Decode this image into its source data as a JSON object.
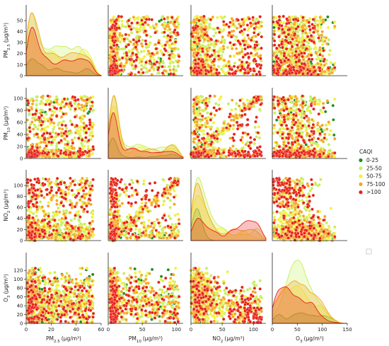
{
  "chart_data": {
    "type": "scatter",
    "kind": "pairplot",
    "variables": [
      {
        "key": "pm25",
        "label": "PM2.5 (μg/m³)",
        "base": "PM",
        "sub": "2.5",
        "unit": "(μg/m³)",
        "range": [
          0,
          60
        ],
        "ticks": [
          0,
          20,
          40,
          60
        ]
      },
      {
        "key": "pm10",
        "label": "PM10 (μg/m³)",
        "base": "PM",
        "sub": "10",
        "unit": "(μg/m³)",
        "range": [
          0,
          110
        ],
        "ticks": [
          0,
          50,
          100
        ]
      },
      {
        "key": "no2",
        "label": "NO2 (μg/m³)",
        "base": "NO",
        "sub": "2",
        "unit": "(μg/m³)",
        "range": [
          0,
          120
        ],
        "ticks": [
          0,
          50,
          100
        ]
      },
      {
        "key": "o3",
        "label": "O3 (μg/m³)",
        "base": "O",
        "sub": "3",
        "unit": "(μg/m³)",
        "range": [
          0,
          150
        ],
        "ticks": [
          0,
          50,
          100,
          150
        ]
      }
    ],
    "y_ticks": {
      "pm25": [
        0,
        10,
        20,
        30,
        40,
        50
      ],
      "pm10": [
        0,
        20,
        40,
        60,
        80,
        100
      ],
      "no2": [
        0,
        20,
        40,
        60,
        80,
        100
      ],
      "o3": [
        0,
        20,
        40,
        60,
        80,
        100,
        120
      ]
    },
    "hue": {
      "title": "CAQI",
      "categories": [
        {
          "name": "0-25",
          "color": "#1e8f1e"
        },
        {
          "name": "25-50",
          "color": "#c6ef5a"
        },
        {
          "name": "50-75",
          "color": "#f2f23a"
        },
        {
          "name": "75-100",
          "color": "#f5a623"
        },
        {
          "name": ">100",
          "color": "#e8201a"
        }
      ]
    },
    "diagonal": "kde",
    "off_diagonal": "scatter",
    "legend_position": "right"
  }
}
